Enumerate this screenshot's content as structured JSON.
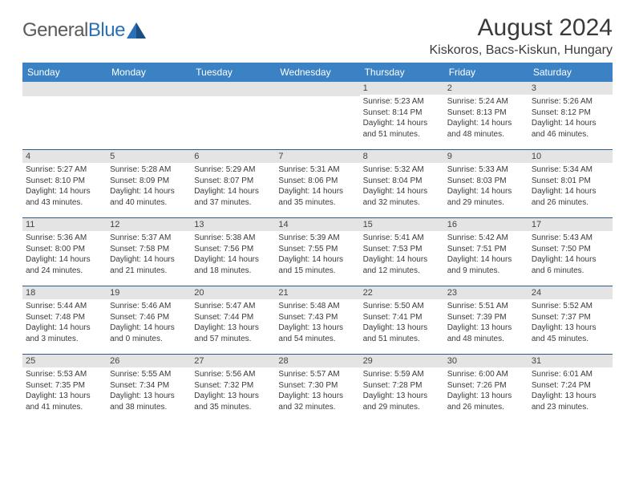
{
  "logo": {
    "part1": "General",
    "part2": "Blue"
  },
  "title": "August 2024",
  "location": "Kiskoros, Bacs-Kiskun, Hungary",
  "weekdays": [
    "Sunday",
    "Monday",
    "Tuesday",
    "Wednesday",
    "Thursday",
    "Friday",
    "Saturday"
  ],
  "colors": {
    "header_bg": "#3a82c4",
    "header_fg": "#ffffff",
    "daynum_bg": "#e4e4e4",
    "week_border": "#2c5a8a",
    "text": "#3a3a3a"
  },
  "startOffset": 4,
  "days": [
    {
      "n": "1",
      "sr": "Sunrise: 5:23 AM",
      "ss": "Sunset: 8:14 PM",
      "d1": "Daylight: 14 hours",
      "d2": "and 51 minutes."
    },
    {
      "n": "2",
      "sr": "Sunrise: 5:24 AM",
      "ss": "Sunset: 8:13 PM",
      "d1": "Daylight: 14 hours",
      "d2": "and 48 minutes."
    },
    {
      "n": "3",
      "sr": "Sunrise: 5:26 AM",
      "ss": "Sunset: 8:12 PM",
      "d1": "Daylight: 14 hours",
      "d2": "and 46 minutes."
    },
    {
      "n": "4",
      "sr": "Sunrise: 5:27 AM",
      "ss": "Sunset: 8:10 PM",
      "d1": "Daylight: 14 hours",
      "d2": "and 43 minutes."
    },
    {
      "n": "5",
      "sr": "Sunrise: 5:28 AM",
      "ss": "Sunset: 8:09 PM",
      "d1": "Daylight: 14 hours",
      "d2": "and 40 minutes."
    },
    {
      "n": "6",
      "sr": "Sunrise: 5:29 AM",
      "ss": "Sunset: 8:07 PM",
      "d1": "Daylight: 14 hours",
      "d2": "and 37 minutes."
    },
    {
      "n": "7",
      "sr": "Sunrise: 5:31 AM",
      "ss": "Sunset: 8:06 PM",
      "d1": "Daylight: 14 hours",
      "d2": "and 35 minutes."
    },
    {
      "n": "8",
      "sr": "Sunrise: 5:32 AM",
      "ss": "Sunset: 8:04 PM",
      "d1": "Daylight: 14 hours",
      "d2": "and 32 minutes."
    },
    {
      "n": "9",
      "sr": "Sunrise: 5:33 AM",
      "ss": "Sunset: 8:03 PM",
      "d1": "Daylight: 14 hours",
      "d2": "and 29 minutes."
    },
    {
      "n": "10",
      "sr": "Sunrise: 5:34 AM",
      "ss": "Sunset: 8:01 PM",
      "d1": "Daylight: 14 hours",
      "d2": "and 26 minutes."
    },
    {
      "n": "11",
      "sr": "Sunrise: 5:36 AM",
      "ss": "Sunset: 8:00 PM",
      "d1": "Daylight: 14 hours",
      "d2": "and 24 minutes."
    },
    {
      "n": "12",
      "sr": "Sunrise: 5:37 AM",
      "ss": "Sunset: 7:58 PM",
      "d1": "Daylight: 14 hours",
      "d2": "and 21 minutes."
    },
    {
      "n": "13",
      "sr": "Sunrise: 5:38 AM",
      "ss": "Sunset: 7:56 PM",
      "d1": "Daylight: 14 hours",
      "d2": "and 18 minutes."
    },
    {
      "n": "14",
      "sr": "Sunrise: 5:39 AM",
      "ss": "Sunset: 7:55 PM",
      "d1": "Daylight: 14 hours",
      "d2": "and 15 minutes."
    },
    {
      "n": "15",
      "sr": "Sunrise: 5:41 AM",
      "ss": "Sunset: 7:53 PM",
      "d1": "Daylight: 14 hours",
      "d2": "and 12 minutes."
    },
    {
      "n": "16",
      "sr": "Sunrise: 5:42 AM",
      "ss": "Sunset: 7:51 PM",
      "d1": "Daylight: 14 hours",
      "d2": "and 9 minutes."
    },
    {
      "n": "17",
      "sr": "Sunrise: 5:43 AM",
      "ss": "Sunset: 7:50 PM",
      "d1": "Daylight: 14 hours",
      "d2": "and 6 minutes."
    },
    {
      "n": "18",
      "sr": "Sunrise: 5:44 AM",
      "ss": "Sunset: 7:48 PM",
      "d1": "Daylight: 14 hours",
      "d2": "and 3 minutes."
    },
    {
      "n": "19",
      "sr": "Sunrise: 5:46 AM",
      "ss": "Sunset: 7:46 PM",
      "d1": "Daylight: 14 hours",
      "d2": "and 0 minutes."
    },
    {
      "n": "20",
      "sr": "Sunrise: 5:47 AM",
      "ss": "Sunset: 7:44 PM",
      "d1": "Daylight: 13 hours",
      "d2": "and 57 minutes."
    },
    {
      "n": "21",
      "sr": "Sunrise: 5:48 AM",
      "ss": "Sunset: 7:43 PM",
      "d1": "Daylight: 13 hours",
      "d2": "and 54 minutes."
    },
    {
      "n": "22",
      "sr": "Sunrise: 5:50 AM",
      "ss": "Sunset: 7:41 PM",
      "d1": "Daylight: 13 hours",
      "d2": "and 51 minutes."
    },
    {
      "n": "23",
      "sr": "Sunrise: 5:51 AM",
      "ss": "Sunset: 7:39 PM",
      "d1": "Daylight: 13 hours",
      "d2": "and 48 minutes."
    },
    {
      "n": "24",
      "sr": "Sunrise: 5:52 AM",
      "ss": "Sunset: 7:37 PM",
      "d1": "Daylight: 13 hours",
      "d2": "and 45 minutes."
    },
    {
      "n": "25",
      "sr": "Sunrise: 5:53 AM",
      "ss": "Sunset: 7:35 PM",
      "d1": "Daylight: 13 hours",
      "d2": "and 41 minutes."
    },
    {
      "n": "26",
      "sr": "Sunrise: 5:55 AM",
      "ss": "Sunset: 7:34 PM",
      "d1": "Daylight: 13 hours",
      "d2": "and 38 minutes."
    },
    {
      "n": "27",
      "sr": "Sunrise: 5:56 AM",
      "ss": "Sunset: 7:32 PM",
      "d1": "Daylight: 13 hours",
      "d2": "and 35 minutes."
    },
    {
      "n": "28",
      "sr": "Sunrise: 5:57 AM",
      "ss": "Sunset: 7:30 PM",
      "d1": "Daylight: 13 hours",
      "d2": "and 32 minutes."
    },
    {
      "n": "29",
      "sr": "Sunrise: 5:59 AM",
      "ss": "Sunset: 7:28 PM",
      "d1": "Daylight: 13 hours",
      "d2": "and 29 minutes."
    },
    {
      "n": "30",
      "sr": "Sunrise: 6:00 AM",
      "ss": "Sunset: 7:26 PM",
      "d1": "Daylight: 13 hours",
      "d2": "and 26 minutes."
    },
    {
      "n": "31",
      "sr": "Sunrise: 6:01 AM",
      "ss": "Sunset: 7:24 PM",
      "d1": "Daylight: 13 hours",
      "d2": "and 23 minutes."
    }
  ]
}
